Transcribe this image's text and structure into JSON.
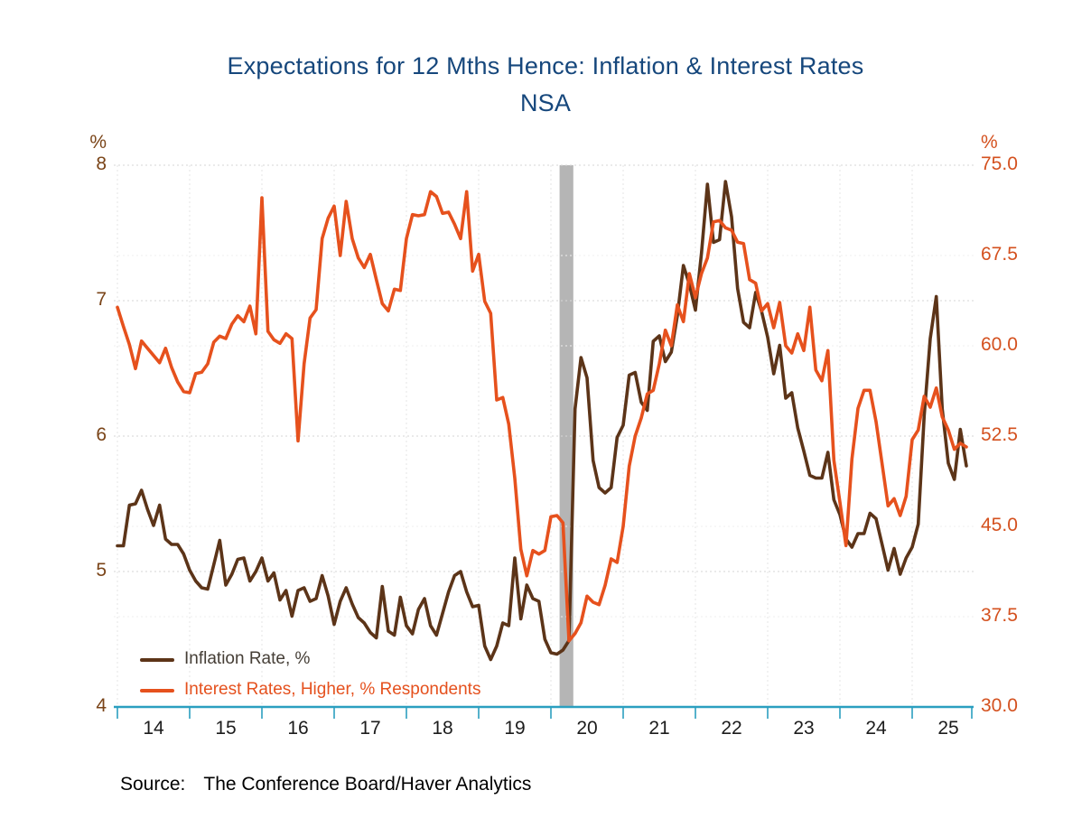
{
  "title": {
    "line1": "Expectations for 12 Mths Hence: Inflation & Interest Rates",
    "line2": "NSA",
    "color": "#16477c"
  },
  "source": {
    "label": "Source:",
    "text": "The Conference Board/Haver Analytics"
  },
  "left_axis": {
    "unit": "%",
    "ticks": [
      "8",
      "7",
      "6",
      "5",
      "4"
    ],
    "color": "#7a4418"
  },
  "right_axis": {
    "unit": "%",
    "ticks": [
      "75.0",
      "67.5",
      "60.0",
      "52.5",
      "45.0",
      "37.5",
      "30.0"
    ],
    "color": "#d4511f"
  },
  "x_axis": {
    "labels": [
      "14",
      "15",
      "16",
      "17",
      "18",
      "19",
      "20",
      "21",
      "22",
      "23",
      "24",
      "25"
    ],
    "color": "#2b9fc0",
    "label_color": "#1c1c1c"
  },
  "legend": [
    {
      "label": "Inflation Rate, %",
      "line_color": "#5c3418",
      "text_color": "#453e36"
    },
    {
      "label": "Interest Rates, Higher, % Respondents",
      "line_color": "#e6511d",
      "text_color": "#e5511e"
    }
  ],
  "recession_band": {
    "from_year": 2020.12,
    "to_year": 2020.31,
    "color": "#b5b5b5"
  },
  "chart_data": {
    "type": "line",
    "x_start_year": 2014.0,
    "x_step_months": 1,
    "xlim": [
      2013.95,
      2025.85
    ],
    "ylim_left": [
      4,
      8
    ],
    "ylim_right": [
      30,
      75
    ],
    "grid": "dotted",
    "legend_position": "bottom-left-inside",
    "series": [
      {
        "name": "Inflation Rate, %",
        "axis": "left",
        "color": "#5c3418",
        "values": [
          5.19,
          5.19,
          5.49,
          5.5,
          5.6,
          5.46,
          5.34,
          5.49,
          5.24,
          5.2,
          5.2,
          5.13,
          5.01,
          4.93,
          4.88,
          4.87,
          5.05,
          5.23,
          4.9,
          4.98,
          5.09,
          5.1,
          4.93,
          5.0,
          5.1,
          4.93,
          4.99,
          4.79,
          4.86,
          4.67,
          4.86,
          4.88,
          4.78,
          4.8,
          4.97,
          4.82,
          4.61,
          4.78,
          4.88,
          4.76,
          4.66,
          4.62,
          4.55,
          4.51,
          4.89,
          4.56,
          4.53,
          4.81,
          4.6,
          4.54,
          4.72,
          4.8,
          4.6,
          4.53,
          4.69,
          4.85,
          4.97,
          5.0,
          4.85,
          4.74,
          4.75,
          4.45,
          4.35,
          4.45,
          4.62,
          4.6,
          5.1,
          4.65,
          4.9,
          4.8,
          4.78,
          4.5,
          4.4,
          4.39,
          4.42,
          4.49,
          6.2,
          6.58,
          6.43,
          5.82,
          5.62,
          5.58,
          5.62,
          5.99,
          6.08,
          6.45,
          6.47,
          6.25,
          6.19,
          6.7,
          6.74,
          6.55,
          6.62,
          6.89,
          7.26,
          7.12,
          6.93,
          7.35,
          7.86,
          7.43,
          7.45,
          7.88,
          7.62,
          7.09,
          6.84,
          6.8,
          7.06,
          6.92,
          6.73,
          6.46,
          6.67,
          6.28,
          6.32,
          6.06,
          5.89,
          5.71,
          5.69,
          5.69,
          5.88,
          5.53,
          5.42,
          5.24,
          5.18,
          5.28,
          5.28,
          5.43,
          5.39,
          5.2,
          5.01,
          5.17,
          4.98,
          5.1,
          5.18,
          5.35,
          6.15,
          6.72,
          7.03,
          6.2,
          5.8,
          5.68,
          6.05,
          5.78
        ]
      },
      {
        "name": "Interest Rates, Higher, % Respondents",
        "axis": "right",
        "color": "#e6511d",
        "values": [
          63.2,
          61.6,
          60.1,
          58.1,
          60.4,
          59.8,
          59.2,
          58.6,
          59.8,
          58.2,
          57.0,
          56.2,
          56.1,
          57.7,
          57.8,
          58.5,
          60.3,
          60.8,
          60.6,
          61.8,
          62.5,
          62.0,
          63.3,
          61.0,
          72.3,
          61.2,
          60.5,
          60.2,
          61.0,
          60.6,
          52.1,
          58.5,
          62.3,
          63.0,
          68.9,
          70.6,
          71.6,
          67.5,
          72.0,
          68.9,
          67.3,
          66.5,
          67.6,
          65.5,
          63.5,
          62.9,
          64.7,
          64.6,
          68.9,
          70.9,
          70.8,
          70.9,
          72.8,
          72.4,
          71.0,
          71.1,
          70.1,
          68.9,
          72.8,
          66.2,
          67.6,
          63.7,
          62.7,
          55.5,
          55.7,
          53.5,
          49.0,
          43.1,
          40.9,
          43.0,
          42.7,
          43.0,
          45.8,
          45.9,
          45.3,
          35.5,
          36.1,
          37.0,
          39.2,
          38.7,
          38.5,
          40.1,
          42.3,
          42.0,
          45.0,
          50.0,
          52.5,
          54.0,
          56.0,
          56.3,
          58.5,
          61.3,
          60.0,
          63.4,
          62.0,
          66.0,
          64.0,
          66.0,
          67.3,
          70.3,
          70.4,
          69.8,
          69.6,
          68.6,
          68.5,
          65.5,
          65.2,
          62.9,
          63.5,
          61.5,
          63.6,
          60.0,
          59.4,
          61.0,
          59.6,
          63.2,
          58.0,
          57.1,
          59.6,
          50.5,
          47.0,
          43.4,
          50.6,
          54.8,
          56.3,
          56.3,
          53.7,
          50.2,
          46.7,
          47.3,
          45.9,
          47.5,
          52.2,
          53.0,
          55.8,
          54.9,
          56.5,
          54.1,
          53.0,
          51.4,
          51.9,
          51.6
        ]
      }
    ]
  }
}
